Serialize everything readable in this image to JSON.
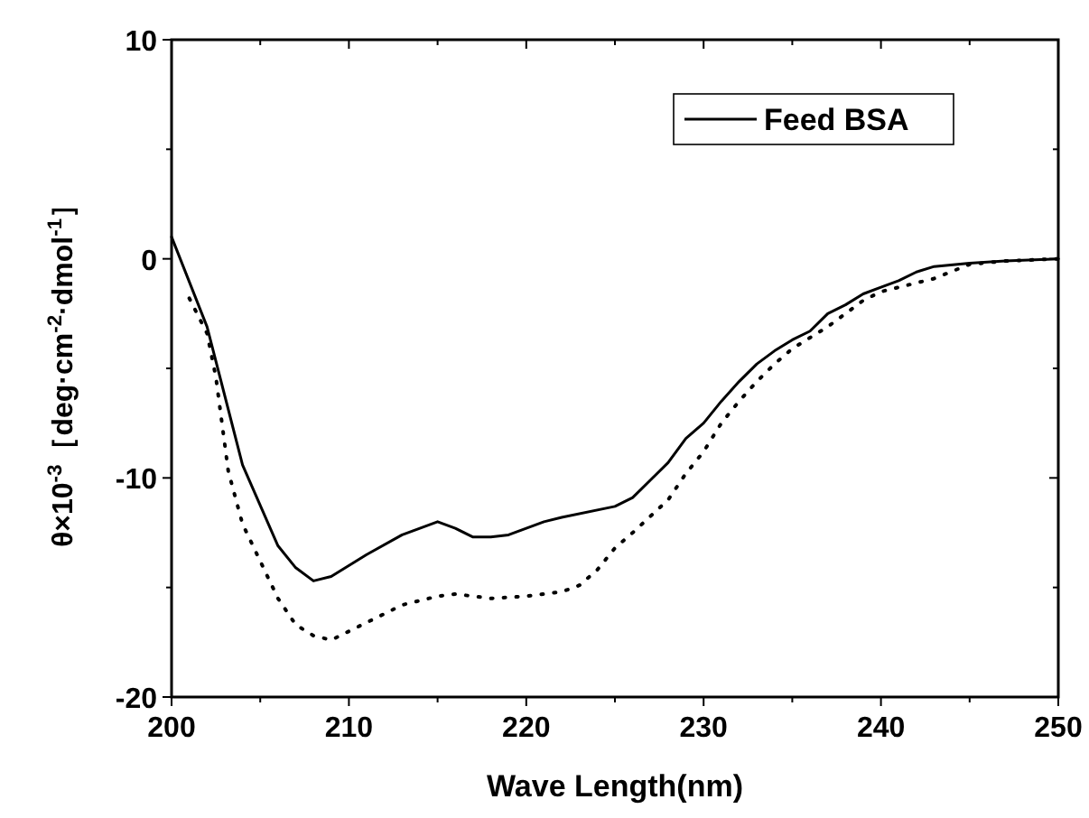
{
  "chart_data": {
    "type": "line",
    "xlabel": "Wave Length(nm)",
    "ylabel": "θ×10$^{-3}$［deg·cm$^{-2}$·dmol$^{-1}$］",
    "xlim": [
      200,
      250
    ],
    "ylim": [
      -20,
      10
    ],
    "xticks": [
      200,
      {
        "value": 205,
        "label": null
      },
      210,
      {
        "value": 215,
        "label": null
      },
      220,
      {
        "value": 225,
        "label": null
      },
      230,
      {
        "value": 235,
        "label": null
      },
      240,
      {
        "value": 245,
        "label": null
      },
      250
    ],
    "yticks": [
      -20,
      {
        "value": -15,
        "label": null
      },
      -10,
      {
        "value": -5,
        "label": null
      },
      0,
      {
        "value": 5,
        "label": null
      },
      10
    ],
    "grid": false,
    "legend": "top right",
    "series": [
      {
        "name": "Feed BSA",
        "color": "#000000",
        "line_style": "solid",
        "x": [
          200,
          202,
          204,
          206,
          207,
          208,
          209,
          211,
          213,
          215,
          216,
          217,
          218,
          219,
          220,
          221,
          222,
          225,
          226,
          227,
          228,
          229,
          230,
          231,
          232,
          233,
          234,
          235,
          236,
          237,
          238,
          239,
          240,
          241,
          242,
          243,
          245,
          247,
          250
        ],
        "values": [
          1.0,
          -3.1,
          -9.4,
          -13.1,
          -14.1,
          -14.7,
          -14.5,
          -13.5,
          -12.6,
          -12.0,
          -12.3,
          -12.7,
          -12.7,
          -12.6,
          -12.3,
          -12.0,
          -11.8,
          -11.3,
          -10.9,
          -10.1,
          -9.3,
          -8.2,
          -7.5,
          -6.5,
          -5.6,
          -4.8,
          -4.2,
          -3.7,
          -3.3,
          -2.5,
          -2.1,
          -1.6,
          -1.3,
          -1.0,
          -0.6,
          -0.35,
          -0.2,
          -0.1,
          0
        ]
      },
      {
        "color": "#000000",
        "line_style": "dotted",
        "x": [
          201,
          202,
          202.5,
          203.2,
          204,
          206,
          207,
          208,
          209,
          211,
          213,
          215,
          216,
          218,
          220,
          222,
          223,
          224,
          225,
          226,
          228,
          229,
          230,
          231,
          232,
          233,
          234,
          235,
          236,
          237,
          238,
          239,
          240,
          241,
          242,
          243,
          245,
          247,
          250
        ],
        "values": [
          -1.8,
          -3.4,
          -5.4,
          -9.7,
          -12.1,
          -15.5,
          -16.7,
          -17.2,
          -17.4,
          -16.6,
          -15.8,
          -15.4,
          -15.3,
          -15.5,
          -15.4,
          -15.2,
          -14.9,
          -14.2,
          -13.2,
          -12.5,
          -11.0,
          -9.8,
          -8.8,
          -7.5,
          -6.5,
          -5.6,
          -4.8,
          -4.1,
          -3.6,
          -3.1,
          -2.5,
          -1.9,
          -1.5,
          -1.3,
          -1.1,
          -0.9,
          -0.25,
          -0.1,
          0
        ]
      }
    ]
  }
}
